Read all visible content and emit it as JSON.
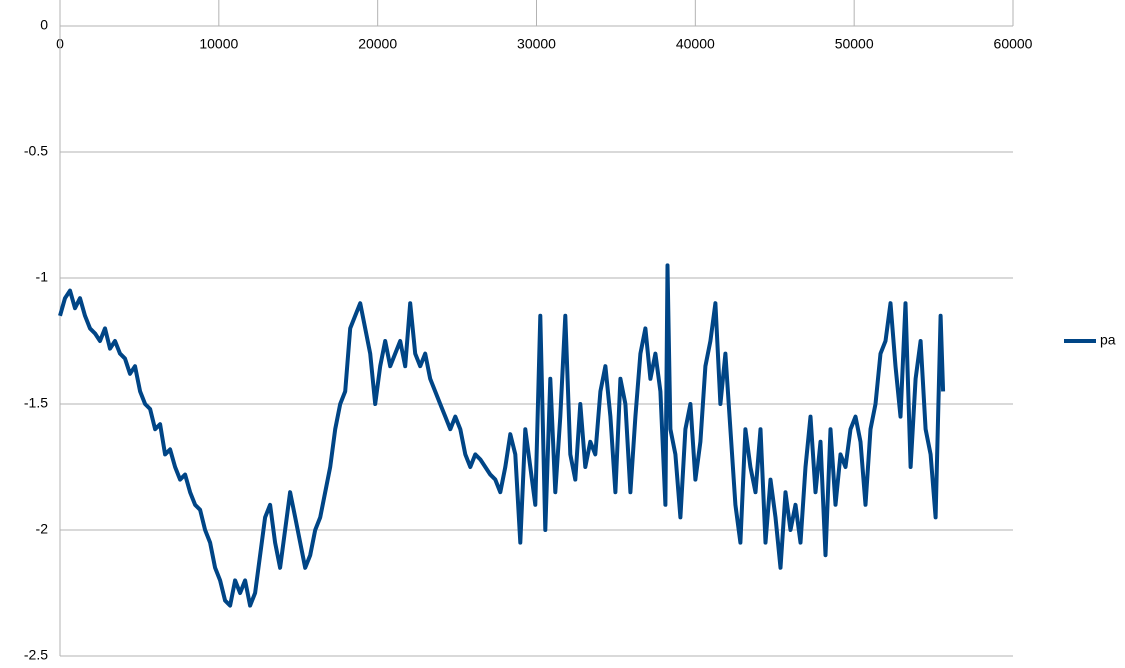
{
  "chart_data": {
    "type": "line",
    "x": [
      0,
      315,
      630,
      945,
      1260,
      1575,
      1890,
      2205,
      2520,
      2835,
      3150,
      3465,
      3780,
      4095,
      4410,
      4725,
      5040,
      5355,
      5670,
      5985,
      6300,
      6615,
      6930,
      7245,
      7560,
      7875,
      8190,
      8505,
      8820,
      9135,
      9450,
      9765,
      10080,
      10395,
      10710,
      11025,
      11340,
      11655,
      11970,
      12285,
      12600,
      12915,
      13230,
      13545,
      13860,
      14175,
      14490,
      14805,
      15120,
      15435,
      15750,
      16065,
      16380,
      16695,
      17010,
      17325,
      17640,
      17955,
      18270,
      18585,
      18900,
      19215,
      19530,
      19845,
      20160,
      20475,
      20790,
      21105,
      21420,
      21735,
      22050,
      22365,
      22680,
      22995,
      23310,
      23625,
      23940,
      24255,
      24570,
      24885,
      25200,
      25515,
      25830,
      26145,
      26460,
      26775,
      27090,
      27405,
      27720,
      28035,
      28350,
      28665,
      28980,
      29295,
      29610,
      29925,
      30240,
      30555,
      30870,
      31185,
      31500,
      31815,
      32130,
      32445,
      32760,
      33075,
      33390,
      33705,
      34020,
      34335,
      34650,
      34965,
      35280,
      35595,
      35910,
      36225,
      36540,
      36855,
      37170,
      37485,
      37800,
      38115,
      38250,
      38430,
      38745,
      39060,
      39375,
      39690,
      40005,
      40320,
      40635,
      40950,
      41265,
      41580,
      41895,
      42210,
      42525,
      42840,
      43155,
      43470,
      43785,
      44100,
      44415,
      44730,
      45045,
      45360,
      45675,
      45990,
      46305,
      46620,
      46935,
      47250,
      47565,
      47880,
      48195,
      48510,
      48825,
      49140,
      49455,
      49770,
      50085,
      50400,
      50715,
      51030,
      51345,
      51660,
      51975,
      52290,
      52605,
      52920,
      53235,
      53550,
      53865,
      54180,
      54495,
      54810,
      55125,
      55440,
      55600
    ],
    "series": [
      {
        "name": "pa",
        "color": "#004586",
        "values": [
          -1.15,
          -1.08,
          -1.05,
          -1.12,
          -1.08,
          -1.15,
          -1.2,
          -1.22,
          -1.25,
          -1.2,
          -1.28,
          -1.25,
          -1.3,
          -1.32,
          -1.38,
          -1.35,
          -1.45,
          -1.5,
          -1.52,
          -1.6,
          -1.58,
          -1.7,
          -1.68,
          -1.75,
          -1.8,
          -1.78,
          -1.85,
          -1.9,
          -1.92,
          -2.0,
          -2.05,
          -2.15,
          -2.2,
          -2.28,
          -2.3,
          -2.2,
          -2.25,
          -2.2,
          -2.3,
          -2.25,
          -2.1,
          -1.95,
          -1.9,
          -2.05,
          -2.15,
          -2.0,
          -1.85,
          -1.95,
          -2.05,
          -2.15,
          -2.1,
          -2.0,
          -1.95,
          -1.85,
          -1.75,
          -1.6,
          -1.5,
          -1.45,
          -1.2,
          -1.15,
          -1.1,
          -1.2,
          -1.3,
          -1.5,
          -1.35,
          -1.25,
          -1.35,
          -1.3,
          -1.25,
          -1.35,
          -1.1,
          -1.3,
          -1.35,
          -1.3,
          -1.4,
          -1.45,
          -1.5,
          -1.55,
          -1.6,
          -1.55,
          -1.6,
          -1.7,
          -1.75,
          -1.7,
          -1.72,
          -1.75,
          -1.78,
          -1.8,
          -1.85,
          -1.75,
          -1.62,
          -1.7,
          -2.05,
          -1.6,
          -1.75,
          -1.9,
          -1.15,
          -2.0,
          -1.4,
          -1.85,
          -1.55,
          -1.15,
          -1.7,
          -1.8,
          -1.5,
          -1.75,
          -1.65,
          -1.7,
          -1.45,
          -1.35,
          -1.55,
          -1.85,
          -1.4,
          -1.5,
          -1.85,
          -1.55,
          -1.3,
          -1.2,
          -1.4,
          -1.3,
          -1.45,
          -1.9,
          -0.95,
          -1.6,
          -1.7,
          -1.95,
          -1.6,
          -1.5,
          -1.8,
          -1.65,
          -1.35,
          -1.25,
          -1.1,
          -1.5,
          -1.3,
          -1.6,
          -1.9,
          -2.05,
          -1.6,
          -1.75,
          -1.85,
          -1.6,
          -2.05,
          -1.8,
          -1.95,
          -2.15,
          -1.85,
          -2.0,
          -1.9,
          -2.05,
          -1.75,
          -1.55,
          -1.85,
          -1.65,
          -2.1,
          -1.6,
          -1.9,
          -1.7,
          -1.75,
          -1.6,
          -1.55,
          -1.65,
          -1.9,
          -1.6,
          -1.5,
          -1.3,
          -1.25,
          -1.1,
          -1.35,
          -1.55,
          -1.1,
          -1.75,
          -1.4,
          -1.25,
          -1.6,
          -1.7,
          -1.95,
          -1.15,
          -1.45
        ]
      }
    ],
    "xlim": [
      0,
      60000
    ],
    "xticks": [
      0,
      10000,
      20000,
      30000,
      40000,
      50000,
      60000
    ],
    "ylim": [
      -2.5,
      0
    ],
    "yticks": [
      0,
      -0.5,
      -1,
      -1.5,
      -2,
      -2.5
    ],
    "grid": true,
    "legend": "right"
  }
}
